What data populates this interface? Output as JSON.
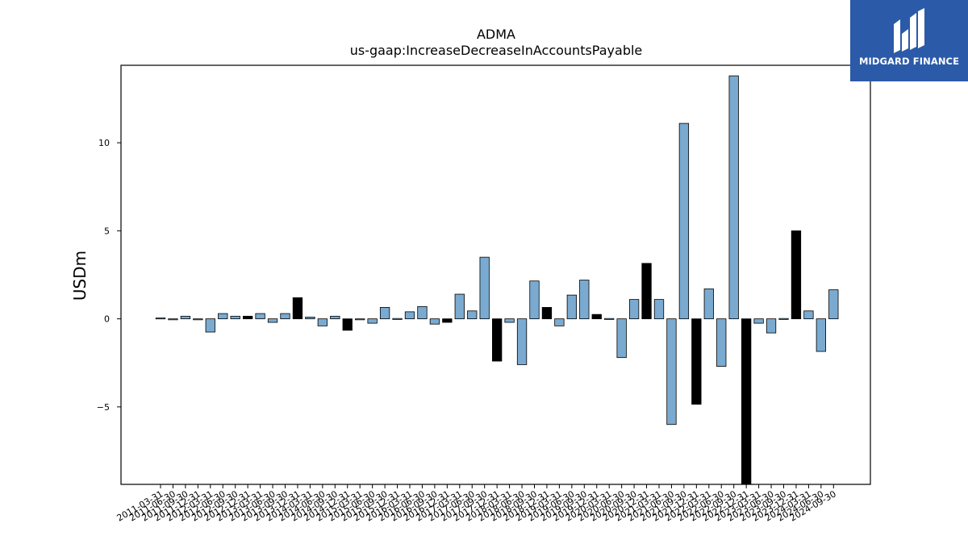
{
  "logo": {
    "text": "MIDGARD FINANCE"
  },
  "chart_data": {
    "type": "bar",
    "title": "ADMA",
    "subtitle": "us-gaap:IncreaseDecreaseInAccountsPayable",
    "xlabel": "",
    "ylabel": "USDm",
    "ylim": [
      -9.4,
      14.4
    ],
    "yticks": [
      10,
      5,
      0,
      -5
    ],
    "ytick_labels": [
      "10",
      "5",
      "0",
      "−5"
    ],
    "colors": {
      "default": "#7aaad0",
      "highlight": "#000000"
    },
    "categories": [
      "2011-03-31",
      "2011-06-30",
      "2011-09-30",
      "2011-12-31",
      "2012-03-31",
      "2012-06-30",
      "2012-09-30",
      "2012-12-31",
      "2013-03-31",
      "2013-06-30",
      "2013-09-30",
      "2013-12-31",
      "2014-03-31",
      "2014-06-30",
      "2014-09-30",
      "2014-12-31",
      "2015-03-31",
      "2015-06-30",
      "2015-09-30",
      "2015-12-31",
      "2016-03-31",
      "2016-06-30",
      "2016-09-30",
      "2016-12-31",
      "2017-03-31",
      "2017-06-30",
      "2017-09-30",
      "2017-12-31",
      "2018-03-31",
      "2018-06-30",
      "2018-09-30",
      "2018-12-31",
      "2019-03-31",
      "2019-06-30",
      "2019-09-30",
      "2019-12-31",
      "2020-03-31",
      "2020-06-30",
      "2020-09-30",
      "2020-12-31",
      "2021-03-31",
      "2021-06-30",
      "2021-09-30",
      "2021-12-31",
      "2022-03-31",
      "2022-06-30",
      "2022-09-30",
      "2022-12-31",
      "2023-03-31",
      "2023-06-30",
      "2023-09-30",
      "2023-12-31",
      "2024-03-31",
      "2024-06-30",
      "2024-09-30"
    ],
    "values": [
      0.05,
      -0.05,
      0.15,
      -0.05,
      -0.75,
      0.3,
      0.15,
      0.15,
      0.3,
      -0.2,
      0.3,
      1.2,
      0.1,
      -0.4,
      0.15,
      -0.65,
      -0.05,
      -0.25,
      0.65,
      0.02,
      0.4,
      0.7,
      -0.3,
      -0.2,
      1.4,
      0.45,
      3.5,
      -2.4,
      -0.2,
      -2.6,
      2.15,
      0.65,
      -0.4,
      1.35,
      2.2,
      0.25,
      0.02,
      -2.2,
      1.1,
      3.15,
      1.1,
      -6.0,
      11.1,
      -4.85,
      1.7,
      -2.7,
      13.8,
      -9.4,
      -0.25,
      -0.8,
      0.02,
      5.0,
      0.45,
      -1.85,
      1.65
    ],
    "highlight": [
      false,
      false,
      false,
      false,
      false,
      false,
      false,
      true,
      false,
      false,
      false,
      true,
      false,
      false,
      false,
      true,
      false,
      false,
      false,
      false,
      false,
      false,
      false,
      true,
      false,
      false,
      false,
      true,
      false,
      false,
      false,
      true,
      false,
      false,
      false,
      true,
      false,
      false,
      false,
      true,
      false,
      false,
      false,
      true,
      false,
      false,
      false,
      true,
      false,
      false,
      false,
      true,
      false,
      false,
      false
    ],
    "grid": false
  }
}
